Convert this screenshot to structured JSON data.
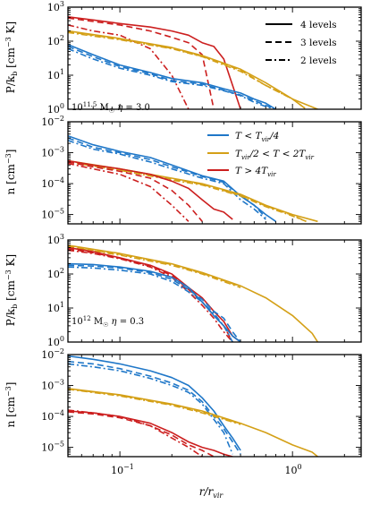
{
  "colors": {
    "cold": "#1f77c8",
    "warm": "#d4a017",
    "hot": "#cc1f1f"
  },
  "legend_styles": [
    {
      "label": "4 levels",
      "dash": "solid"
    },
    {
      "label": "3 levels",
      "dash": "dashed"
    },
    {
      "label": "2 levels",
      "dash": "dashdot"
    }
  ],
  "legend_temps": [
    {
      "label": "T < T_vir/4",
      "color": "cold"
    },
    {
      "label": "T_vir/2 < T < 2T_vir",
      "color": "warm"
    },
    {
      "label": "T > 4T_vir",
      "color": "hot"
    }
  ],
  "annotations": {
    "p1": "10^11.5 M☉ η = 3.0",
    "p3": "10^12 M☉ η = 0.3"
  },
  "x_tick_labels": [
    "10⁻¹",
    "10⁰"
  ],
  "x_label": "r/r_vir",
  "chart_data": [
    {
      "type": "line",
      "panel": 1,
      "ylabel": "P/k_b [cm⁻³ K]",
      "yscale": "log",
      "xlim": [
        0.05,
        2.5
      ],
      "ylim": [
        1,
        1000
      ],
      "y_tick_labels": [
        "10⁰",
        "10¹",
        "10²",
        "10³"
      ],
      "series": [
        {
          "temp": "hot",
          "levels": 4,
          "x": [
            0.05,
            0.07,
            0.1,
            0.15,
            0.2,
            0.25,
            0.3,
            0.35,
            0.4,
            0.45,
            0.5
          ],
          "y": [
            520,
            420,
            330,
            260,
            200,
            150,
            90,
            70,
            30,
            5,
            1
          ]
        },
        {
          "temp": "hot",
          "levels": 3,
          "x": [
            0.05,
            0.07,
            0.1,
            0.15,
            0.2,
            0.25,
            0.3,
            0.35
          ],
          "y": [
            480,
            380,
            300,
            200,
            130,
            90,
            40,
            1
          ]
        },
        {
          "temp": "hot",
          "levels": 2,
          "x": [
            0.05,
            0.07,
            0.1,
            0.15,
            0.2,
            0.25
          ],
          "y": [
            300,
            200,
            150,
            60,
            10,
            1
          ]
        },
        {
          "temp": "warm",
          "levels": 4,
          "x": [
            0.05,
            0.1,
            0.2,
            0.3,
            0.5,
            0.7,
            1.0,
            1.4
          ],
          "y": [
            200,
            120,
            65,
            38,
            15,
            6,
            2,
            1
          ]
        },
        {
          "temp": "warm",
          "levels": 3,
          "x": [
            0.05,
            0.1,
            0.2,
            0.3,
            0.5,
            0.7,
            1.0,
            1.2
          ],
          "y": [
            190,
            115,
            62,
            36,
            14,
            5,
            2,
            1
          ]
        },
        {
          "temp": "warm",
          "levels": 2,
          "x": [
            0.05,
            0.1,
            0.2,
            0.3,
            0.5,
            0.7,
            1.0,
            1.2
          ],
          "y": [
            180,
            110,
            60,
            35,
            13,
            5,
            2,
            1
          ]
        },
        {
          "temp": "cold",
          "levels": 4,
          "x": [
            0.05,
            0.07,
            0.1,
            0.15,
            0.2,
            0.3,
            0.4,
            0.5,
            0.6,
            0.7,
            0.8
          ],
          "y": [
            80,
            40,
            20,
            12,
            8,
            6,
            4,
            3,
            2,
            1.5,
            1
          ]
        },
        {
          "temp": "cold",
          "levels": 3,
          "x": [
            0.05,
            0.07,
            0.1,
            0.15,
            0.2,
            0.3,
            0.4,
            0.5,
            0.6,
            0.7,
            0.8
          ],
          "y": [
            70,
            35,
            18,
            11,
            7,
            5.5,
            3.6,
            2.6,
            1.8,
            1.3,
            1
          ]
        },
        {
          "temp": "cold",
          "levels": 2,
          "x": [
            0.05,
            0.07,
            0.1,
            0.15,
            0.2,
            0.3,
            0.4,
            0.5,
            0.6,
            0.7,
            0.8
          ],
          "y": [
            60,
            30,
            16,
            10,
            6.5,
            5,
            3.5,
            2.5,
            1.6,
            1.2,
            1
          ]
        }
      ]
    },
    {
      "type": "line",
      "panel": 2,
      "ylabel": "n [cm⁻³]",
      "yscale": "log",
      "xlim": [
        0.05,
        2.5
      ],
      "ylim": [
        5e-06,
        0.01
      ],
      "y_tick_labels": [
        "10⁻⁵",
        "10⁻⁴",
        "10⁻³",
        "10⁻²"
      ],
      "series": [
        {
          "temp": "cold",
          "levels": 4,
          "x": [
            0.05,
            0.07,
            0.1,
            0.15,
            0.2,
            0.3,
            0.4,
            0.5,
            0.6,
            0.7,
            0.8
          ],
          "y": [
            0.0035,
            0.0018,
            0.0011,
            0.0007,
            0.0004,
            0.00018,
            0.00012,
            4e-05,
            2e-05,
            1e-05,
            6e-06
          ]
        },
        {
          "temp": "cold",
          "levels": 3,
          "x": [
            0.05,
            0.07,
            0.1,
            0.15,
            0.2,
            0.3,
            0.4,
            0.5,
            0.6,
            0.7
          ],
          "y": [
            0.003,
            0.0015,
            0.001,
            0.0006,
            0.00035,
            0.00017,
            0.00011,
            4e-05,
            2e-05,
            8e-06
          ]
        },
        {
          "temp": "cold",
          "levels": 2,
          "x": [
            0.05,
            0.07,
            0.1,
            0.15,
            0.2,
            0.3,
            0.4,
            0.5,
            0.6,
            0.7
          ],
          "y": [
            0.0025,
            0.0013,
            0.0009,
            0.0005,
            0.0003,
            0.00015,
            0.0001,
            3e-05,
            1.5e-05,
            7e-06
          ]
        },
        {
          "temp": "warm",
          "levels": 4,
          "x": [
            0.05,
            0.1,
            0.2,
            0.3,
            0.5,
            0.7,
            1.0,
            1.4
          ],
          "y": [
            0.00055,
            0.0003,
            0.00015,
            0.0001,
            4.5e-05,
            2e-05,
            1e-05,
            6e-06
          ]
        },
        {
          "temp": "warm",
          "levels": 3,
          "x": [
            0.05,
            0.1,
            0.2,
            0.3,
            0.5,
            0.7,
            1.0,
            1.2
          ],
          "y": [
            0.00052,
            0.00028,
            0.00014,
            9.5e-05,
            4.2e-05,
            1.9e-05,
            9.5e-06,
            6e-06
          ]
        },
        {
          "temp": "warm",
          "levels": 2,
          "x": [
            0.05,
            0.1,
            0.2,
            0.3,
            0.5,
            0.7,
            1.0,
            1.2
          ],
          "y": [
            0.0005,
            0.00027,
            0.00013,
            9e-05,
            4e-05,
            1.8e-05,
            9e-06,
            6e-06
          ]
        },
        {
          "temp": "hot",
          "levels": 4,
          "x": [
            0.05,
            0.07,
            0.1,
            0.15,
            0.2,
            0.25,
            0.3,
            0.35,
            0.4,
            0.45
          ],
          "y": [
            0.00055,
            0.0004,
            0.0003,
            0.0002,
            0.00012,
            7e-05,
            3e-05,
            1.5e-05,
            1.2e-05,
            7e-06
          ]
        },
        {
          "temp": "hot",
          "levels": 3,
          "x": [
            0.05,
            0.07,
            0.1,
            0.15,
            0.2,
            0.25,
            0.3
          ],
          "y": [
            0.0005,
            0.00035,
            0.00025,
            0.00015,
            6e-05,
            2e-05,
            6e-06
          ]
        },
        {
          "temp": "hot",
          "levels": 2,
          "x": [
            0.05,
            0.07,
            0.1,
            0.15,
            0.2,
            0.25
          ],
          "y": [
            0.00045,
            0.0003,
            0.0002,
            8e-05,
            2e-05,
            6e-06
          ]
        }
      ]
    },
    {
      "type": "line",
      "panel": 3,
      "ylabel": "P/k_b [cm⁻³ K]",
      "yscale": "log",
      "xlim": [
        0.05,
        2.5
      ],
      "ylim": [
        1,
        1000
      ],
      "y_tick_labels": [
        "10⁰",
        "10¹",
        "10²",
        "10³"
      ],
      "series": [
        {
          "temp": "warm",
          "levels": 4,
          "x": [
            0.05,
            0.1,
            0.2,
            0.3,
            0.5,
            0.7,
            1.0,
            1.3,
            1.4
          ],
          "y": [
            700,
            400,
            200,
            110,
            45,
            20,
            6,
            1.8,
            1
          ]
        },
        {
          "temp": "warm",
          "levels": 3,
          "x": [
            0.05,
            0.1,
            0.2,
            0.3,
            0.5
          ],
          "y": [
            650,
            380,
            190,
            105,
            43
          ]
        },
        {
          "temp": "warm",
          "levels": 2,
          "x": [
            0.05,
            0.1,
            0.2,
            0.3,
            0.5
          ],
          "y": [
            620,
            360,
            180,
            100,
            40
          ]
        },
        {
          "temp": "hot",
          "levels": 4,
          "x": [
            0.05,
            0.07,
            0.1,
            0.15,
            0.2,
            0.25,
            0.3,
            0.35,
            0.4,
            0.45,
            0.5
          ],
          "y": [
            600,
            450,
            300,
            180,
            100,
            40,
            20,
            8,
            4,
            1.5,
            1
          ]
        },
        {
          "temp": "hot",
          "levels": 3,
          "x": [
            0.05,
            0.07,
            0.1,
            0.15,
            0.2,
            0.25,
            0.3,
            0.35,
            0.4,
            0.45
          ],
          "y": [
            550,
            420,
            290,
            170,
            90,
            35,
            15,
            6,
            3,
            1
          ]
        },
        {
          "temp": "hot",
          "levels": 2,
          "x": [
            0.05,
            0.07,
            0.1,
            0.15,
            0.2,
            0.25,
            0.3,
            0.35,
            0.4,
            0.45
          ],
          "y": [
            500,
            400,
            280,
            160,
            80,
            30,
            12,
            5,
            2,
            1
          ]
        },
        {
          "temp": "cold",
          "levels": 4,
          "x": [
            0.05,
            0.07,
            0.1,
            0.15,
            0.2,
            0.25,
            0.3,
            0.35,
            0.4,
            0.45,
            0.5
          ],
          "y": [
            200,
            190,
            160,
            120,
            80,
            40,
            15,
            6,
            3,
            1.5,
            1
          ]
        },
        {
          "temp": "cold",
          "levels": 3,
          "x": [
            0.05,
            0.07,
            0.1,
            0.15,
            0.2,
            0.25,
            0.3,
            0.35,
            0.4,
            0.45,
            0.5
          ],
          "y": [
            180,
            170,
            150,
            110,
            70,
            35,
            18,
            8,
            5,
            2,
            1
          ]
        },
        {
          "temp": "cold",
          "levels": 2,
          "x": [
            0.05,
            0.07,
            0.1,
            0.15,
            0.2,
            0.25,
            0.3,
            0.35,
            0.4,
            0.45
          ],
          "y": [
            160,
            150,
            130,
            100,
            60,
            30,
            15,
            7,
            3,
            1
          ]
        }
      ]
    },
    {
      "type": "line",
      "panel": 4,
      "ylabel": "n [cm⁻³]",
      "yscale": "log",
      "xlim": [
        0.05,
        2.5
      ],
      "ylim": [
        5e-06,
        0.01
      ],
      "y_tick_labels": [
        "10⁻⁵",
        "10⁻⁴",
        "10⁻³",
        "10⁻²"
      ],
      "series": [
        {
          "temp": "cold",
          "levels": 4,
          "x": [
            0.05,
            0.07,
            0.1,
            0.15,
            0.2,
            0.25,
            0.3,
            0.35,
            0.4,
            0.45,
            0.5
          ],
          "y": [
            0.009,
            0.007,
            0.005,
            0.003,
            0.0018,
            0.001,
            0.0004,
            0.00015,
            5e-05,
            2e-05,
            8e-06
          ]
        },
        {
          "temp": "cold",
          "levels": 3,
          "x": [
            0.05,
            0.07,
            0.1,
            0.15,
            0.2,
            0.25,
            0.3,
            0.35,
            0.4,
            0.45,
            0.5
          ],
          "y": [
            0.006,
            0.005,
            0.0035,
            0.002,
            0.0012,
            0.0007,
            0.0003,
            0.0001,
            4e-05,
            1.5e-05,
            6e-06
          ]
        },
        {
          "temp": "cold",
          "levels": 2,
          "x": [
            0.05,
            0.07,
            0.1,
            0.15,
            0.2,
            0.25,
            0.3,
            0.35,
            0.4,
            0.45
          ],
          "y": [
            0.005,
            0.004,
            0.003,
            0.0017,
            0.001,
            0.0006,
            0.00025,
            8e-05,
            3e-05,
            6e-06
          ]
        },
        {
          "temp": "warm",
          "levels": 4,
          "x": [
            0.05,
            0.1,
            0.2,
            0.3,
            0.5,
            0.7,
            1.0,
            1.3,
            1.4
          ],
          "y": [
            0.0008,
            0.0005,
            0.00025,
            0.00015,
            6e-05,
            3e-05,
            1.2e-05,
            7e-06,
            5e-06
          ]
        },
        {
          "temp": "warm",
          "levels": 3,
          "x": [
            0.05,
            0.1,
            0.2,
            0.3,
            0.5
          ],
          "y": [
            0.00078,
            0.00048,
            0.00024,
            0.00014,
            5.8e-05
          ]
        },
        {
          "temp": "warm",
          "levels": 2,
          "x": [
            0.05,
            0.1,
            0.2,
            0.3,
            0.5
          ],
          "y": [
            0.00076,
            0.00046,
            0.00023,
            0.00013,
            5.5e-05
          ]
        },
        {
          "temp": "hot",
          "levels": 4,
          "x": [
            0.05,
            0.07,
            0.1,
            0.15,
            0.2,
            0.25,
            0.3,
            0.35,
            0.4,
            0.45
          ],
          "y": [
            0.00015,
            0.00013,
            0.0001,
            6e-05,
            3e-05,
            1.5e-05,
            1e-05,
            8e-06,
            6e-06,
            5e-06
          ]
        },
        {
          "temp": "hot",
          "levels": 3,
          "x": [
            0.05,
            0.07,
            0.1,
            0.15,
            0.2,
            0.25,
            0.3,
            0.35
          ],
          "y": [
            0.00014,
            0.00012,
            9e-05,
            5e-05,
            2.5e-05,
            1.2e-05,
            8e-06,
            5e-06
          ]
        },
        {
          "temp": "hot",
          "levels": 2,
          "x": [
            0.05,
            0.07,
            0.1,
            0.15,
            0.2,
            0.25,
            0.3
          ],
          "y": [
            0.00016,
            0.00013,
            0.0001,
            5e-05,
            2e-05,
            1e-05,
            5e-06
          ]
        }
      ]
    }
  ]
}
